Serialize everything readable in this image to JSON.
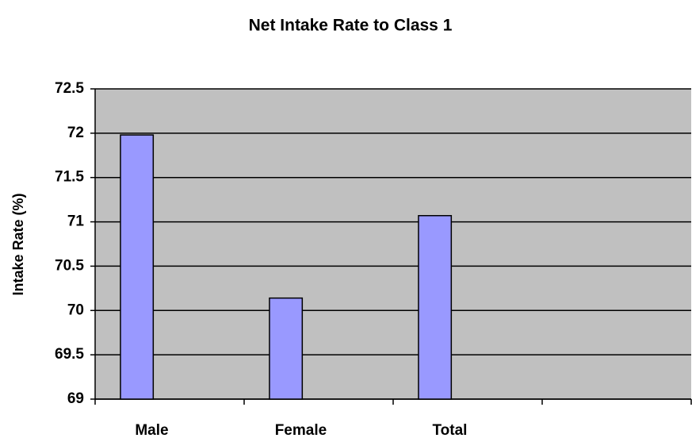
{
  "chart_data": {
    "type": "bar",
    "title": "Net Intake Rate to Class 1",
    "y_label": "Intake Rate (%)",
    "categories": [
      "Male",
      "Female",
      "Total",
      null
    ],
    "values": [
      71.98,
      70.14,
      71.07,
      null
    ],
    "color": "#9999ff",
    "ylim": [
      69,
      72.5
    ],
    "yticks": [
      69,
      69.5,
      70,
      70.5,
      71,
      71.5,
      72,
      72.5
    ],
    "grid": true
  }
}
